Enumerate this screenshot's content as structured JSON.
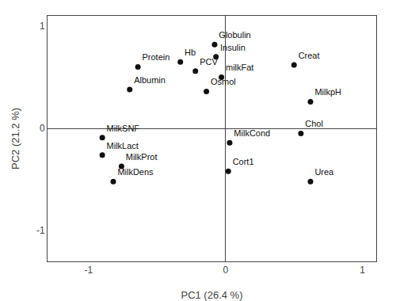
{
  "chart_data": {
    "type": "scatter",
    "xlabel": "PC1 (26.4 %)",
    "ylabel": "PC2 (21.2 %)",
    "labels": [
      "Globulin",
      "Insulin",
      "Hb",
      "Protein",
      "PCV",
      "milkFat",
      "Albumin",
      "Osmol",
      "Creat",
      "MilkpH",
      "Chol",
      "MilkCond",
      "Cort1",
      "Urea",
      "MilkSNF",
      "MilkLact",
      "MilkProt",
      "MilkDens"
    ],
    "x": [
      -0.08,
      -0.07,
      -0.33,
      -0.64,
      -0.22,
      -0.03,
      -0.7,
      -0.14,
      0.5,
      0.62,
      0.55,
      0.03,
      0.02,
      0.62,
      -0.9,
      -0.9,
      -0.76,
      -0.82
    ],
    "values": [
      0.82,
      0.7,
      0.65,
      0.6,
      0.56,
      0.5,
      0.38,
      0.36,
      0.62,
      0.26,
      -0.05,
      -0.14,
      -0.42,
      -0.52,
      -0.09,
      -0.26,
      -0.37,
      -0.52
    ],
    "xlim": [
      -1.3,
      1.1
    ],
    "ylim": [
      -1.3,
      1.1
    ],
    "xticks": [
      -1,
      0,
      1
    ],
    "yticks": [
      -1,
      0,
      1
    ],
    "color": "#111111",
    "grid": false
  }
}
